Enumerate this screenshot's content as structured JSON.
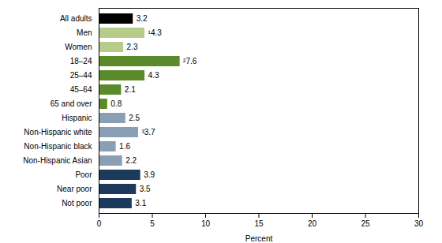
{
  "chart_data": {
    "type": "bar",
    "orientation": "horizontal",
    "categories": [
      "All adults",
      "Men",
      "Women",
      "18–24",
      "25–44",
      "45–64",
      "65 and over",
      "Hispanic",
      "Non-Hispanic white",
      "Non-Hispanic black",
      "Non-Hispanic Asian",
      "Poor",
      "Near poor",
      "Not poor"
    ],
    "values": [
      3.2,
      4.3,
      2.3,
      7.6,
      4.3,
      2.1,
      0.8,
      2.5,
      3.7,
      1.6,
      2.2,
      3.9,
      3.5,
      3.1
    ],
    "value_labels": [
      "3.2",
      "¹4.3",
      "2.3",
      "²7.6",
      "4.3",
      "2.1",
      "0.8",
      "2.5",
      "³3.7",
      "1.6",
      "2.2",
      "3.9",
      "3.5",
      "3.1"
    ],
    "colors": [
      "#000000",
      "#b8cc8a",
      "#b8cc8a",
      "#5a8a2a",
      "#5a8a2a",
      "#5a8a2a",
      "#5a8a2a",
      "#8a9fb5",
      "#8a9fb5",
      "#8a9fb5",
      "#8a9fb5",
      "#1b3a5c",
      "#1b3a5c",
      "#1b3a5c"
    ],
    "xlabel": "Percent",
    "xlim": [
      0,
      30
    ],
    "xticks": [
      0,
      5,
      10,
      15,
      20,
      25,
      30
    ],
    "data_labels": true,
    "grid": false
  }
}
